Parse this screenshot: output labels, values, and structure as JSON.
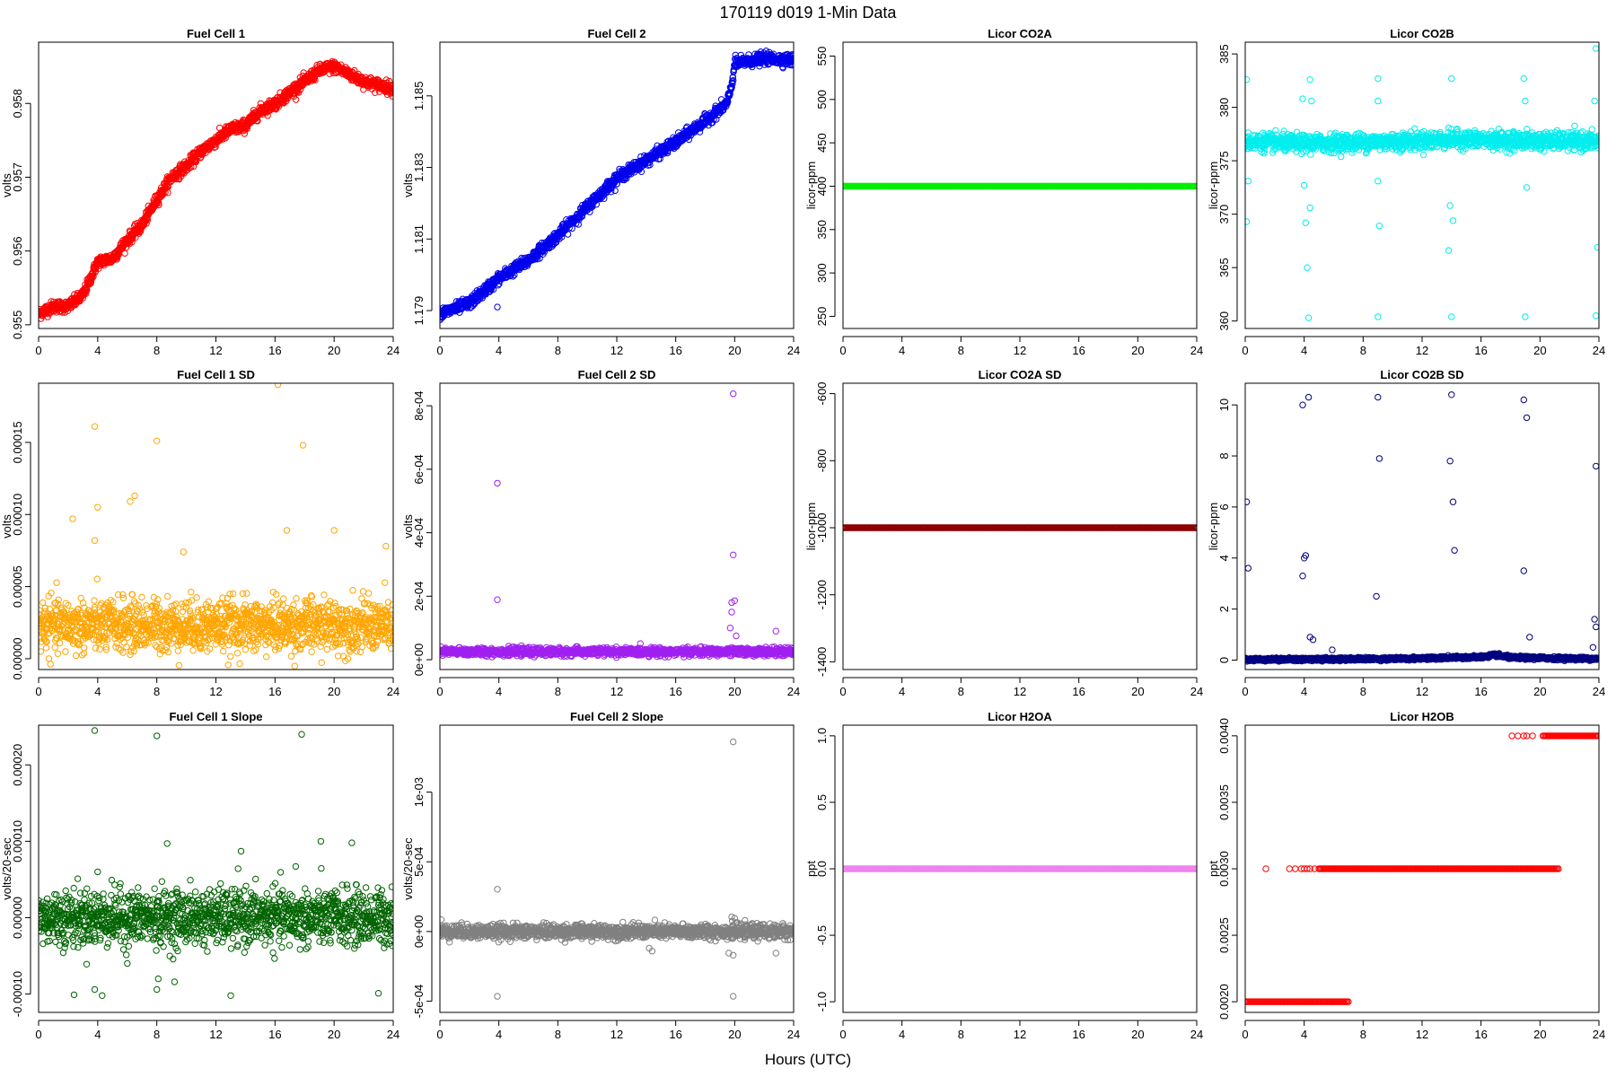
{
  "figure": {
    "title": "170119   d019   1-Min Data",
    "xlabel": "Hours (UTC)"
  },
  "chart_data": [
    {
      "type": "scatter",
      "title": "Fuel Cell 1",
      "ylabel": "volts",
      "color": "#ff0000",
      "xlim": [
        0,
        24
      ],
      "ylim": [
        0.95495,
        0.95883
      ],
      "xticks": [
        0,
        4,
        8,
        12,
        16,
        20,
        24
      ],
      "yticks": [
        0.955,
        0.956,
        0.957,
        0.958
      ],
      "ytick_labels": [
        "0.955",
        "0.956",
        "0.957",
        "0.958"
      ],
      "trend": [
        [
          0,
          0.95515
        ],
        [
          1,
          0.95525
        ],
        [
          2,
          0.95525
        ],
        [
          3,
          0.9554
        ],
        [
          4,
          0.95585
        ],
        [
          5,
          0.9559
        ],
        [
          6,
          0.95615
        ],
        [
          7,
          0.95635
        ],
        [
          8,
          0.9567
        ],
        [
          9,
          0.957
        ],
        [
          10,
          0.95715
        ],
        [
          11,
          0.95735
        ],
        [
          12,
          0.9575
        ],
        [
          13,
          0.95765
        ],
        [
          14,
          0.9577
        ],
        [
          15,
          0.9579
        ],
        [
          16,
          0.958
        ],
        [
          17,
          0.95815
        ],
        [
          18,
          0.9583
        ],
        [
          19,
          0.95845
        ],
        [
          20,
          0.9585
        ],
        [
          21,
          0.9584
        ],
        [
          22,
          0.9583
        ],
        [
          23,
          0.95825
        ],
        [
          24,
          0.9582
        ]
      ],
      "noise": 4e-05,
      "outliers": []
    },
    {
      "type": "scatter",
      "title": "Fuel Cell 2",
      "ylabel": "volts",
      "color": "#0000ee",
      "xlim": [
        0,
        24
      ],
      "ylim": [
        1.1785,
        1.1865
      ],
      "xticks": [
        0,
        4,
        8,
        12,
        16,
        20,
        24
      ],
      "yticks": [
        1.179,
        1.181,
        1.183,
        1.185
      ],
      "ytick_labels": [
        "1.179",
        "1.181",
        "1.183",
        "1.185"
      ],
      "trend": [
        [
          0,
          1.1789
        ],
        [
          2,
          1.1792
        ],
        [
          4,
          1.1799
        ],
        [
          6,
          1.1804
        ],
        [
          8,
          1.1811
        ],
        [
          10,
          1.1819
        ],
        [
          12,
          1.1827
        ],
        [
          14,
          1.1832
        ],
        [
          16,
          1.1837
        ],
        [
          18,
          1.1843
        ],
        [
          19.5,
          1.1848
        ],
        [
          19.8,
          1.1853
        ],
        [
          20,
          1.1859
        ],
        [
          22,
          1.18605
        ],
        [
          24,
          1.186
        ]
      ],
      "noise": 8e-05,
      "outliers": [
        [
          3.9,
          1.1791
        ],
        [
          19.9,
          1.1867
        ]
      ]
    },
    {
      "type": "scatter",
      "title": "Licor CO2A",
      "ylabel": "licor-ppm",
      "color": "#00ee00",
      "xlim": [
        0,
        24
      ],
      "ylim": [
        236,
        566
      ],
      "xticks": [
        0,
        4,
        8,
        12,
        16,
        20,
        24
      ],
      "yticks": [
        250,
        300,
        350,
        400,
        450,
        500,
        550
      ],
      "ytick_labels": [
        "250",
        "300",
        "350",
        "400",
        "450",
        "500",
        "550"
      ],
      "trend": [
        [
          0,
          400
        ],
        [
          24,
          400
        ]
      ],
      "noise": 0,
      "outliers": []
    },
    {
      "type": "scatter",
      "title": "Licor CO2B",
      "ylabel": "licor-ppm",
      "color": "#00eeee",
      "xlim": [
        0,
        24
      ],
      "ylim": [
        359.3,
        386.1
      ],
      "xticks": [
        0,
        4,
        8,
        12,
        16,
        20,
        24
      ],
      "yticks": [
        360,
        365,
        370,
        375,
        380,
        385
      ],
      "ytick_labels": [
        "360",
        "365",
        "370",
        "375",
        "380",
        "385"
      ],
      "trend": [
        [
          0,
          376.8
        ],
        [
          4,
          376.6
        ],
        [
          6,
          376.7
        ],
        [
          10,
          376.8
        ],
        [
          14,
          377.0
        ],
        [
          18,
          376.9
        ],
        [
          24,
          376.8
        ]
      ],
      "noise": 0.4,
      "outliers": [
        [
          0.1,
          382.6
        ],
        [
          0.1,
          369.3
        ],
        [
          0.2,
          373.1
        ],
        [
          3.9,
          380.8
        ],
        [
          4.0,
          372.7
        ],
        [
          4.1,
          369.2
        ],
        [
          4.2,
          365.0
        ],
        [
          4.3,
          360.3
        ],
        [
          4.4,
          382.6
        ],
        [
          4.5,
          380.6
        ],
        [
          4.4,
          370.6
        ],
        [
          9,
          382.7
        ],
        [
          9,
          380.6
        ],
        [
          9,
          373.1
        ],
        [
          9.1,
          368.9
        ],
        [
          9,
          360.4
        ],
        [
          13.8,
          366.6
        ],
        [
          13.9,
          370.8
        ],
        [
          14,
          382.7
        ],
        [
          14.1,
          369.4
        ],
        [
          14,
          360.4
        ],
        [
          18.9,
          382.7
        ],
        [
          19,
          380.6
        ],
        [
          19.1,
          372.5
        ],
        [
          19,
          360.4
        ],
        [
          23.8,
          385.5
        ],
        [
          23.9,
          366.9
        ],
        [
          23.7,
          380.6
        ],
        [
          23.8,
          360.5
        ]
      ]
    },
    {
      "type": "scatter",
      "title": "Fuel Cell 1 SD",
      "ylabel": "volts",
      "color": "#ffa500",
      "xlim": [
        0,
        24
      ],
      "ylim": [
        -7.5e-06,
        0.000191
      ],
      "xticks": [
        0,
        4,
        8,
        12,
        16,
        20,
        24
      ],
      "yticks": [
        0,
        5e-05,
        0.0001,
        0.00015
      ],
      "ytick_labels": [
        "0.00000",
        "0.00005",
        "0.00010",
        "0.00015"
      ],
      "trend": [
        [
          0,
          2.3e-05
        ],
        [
          24,
          2.3e-05
        ]
      ],
      "noise": 9e-06,
      "outliers": [
        [
          3.8,
          0.000161
        ],
        [
          8,
          0.000151
        ],
        [
          16.2,
          0.00019
        ],
        [
          17.9,
          0.000148
        ],
        [
          2.3,
          9.7e-05
        ],
        [
          4,
          0.000105
        ],
        [
          6.5,
          0.000113
        ],
        [
          6.2,
          0.000109
        ],
        [
          9.8,
          7.4e-05
        ],
        [
          16.8,
          8.9e-05
        ],
        [
          20,
          8.9e-05
        ],
        [
          23.5,
          7.8e-05
        ],
        [
          3.8,
          8.2e-05
        ]
      ]
    },
    {
      "type": "scatter",
      "title": "Fuel Cell 2 SD",
      "ylabel": "volts",
      "color": "#a020f0",
      "xlim": [
        0,
        24
      ],
      "ylim": [
        -3.1e-05,
        0.000871
      ],
      "xticks": [
        0,
        4,
        8,
        12,
        16,
        20,
        24
      ],
      "yticks": [
        0,
        0.0002,
        0.0004,
        0.0006,
        0.0008
      ],
      "ytick_labels": [
        "0e+00",
        "2e-04",
        "4e-04",
        "6e-04",
        "8e-04"
      ],
      "trend": [
        [
          0,
          2.5e-05
        ],
        [
          24,
          2.5e-05
        ]
      ],
      "noise": 6e-06,
      "outliers": [
        [
          3.9,
          0.000556
        ],
        [
          3.9,
          0.000189
        ],
        [
          19.9,
          0.000838
        ],
        [
          19.9,
          0.00033
        ],
        [
          19.8,
          0.00018
        ],
        [
          20,
          0.000186
        ],
        [
          19.8,
          0.00015
        ],
        [
          19.7,
          0.0001
        ],
        [
          20.1,
          7.5e-05
        ],
        [
          22.8,
          9e-05
        ]
      ]
    },
    {
      "type": "scatter",
      "title": "Licor CO2A SD",
      "ylabel": "licor-ppm",
      "color": "#8b0000",
      "xlim": [
        0,
        24
      ],
      "ylim": [
        -1423,
        -569
      ],
      "xticks": [
        0,
        4,
        8,
        12,
        16,
        20,
        24
      ],
      "yticks": [
        -1400,
        -1200,
        -1000,
        -800,
        -600
      ],
      "ytick_labels": [
        "-1400",
        "-1200",
        "-1000",
        "-800",
        "-600"
      ],
      "trend": [
        [
          0,
          -1000
        ],
        [
          24,
          -1000
        ]
      ],
      "noise": 0,
      "outliers": []
    },
    {
      "type": "scatter",
      "title": "Licor CO2B SD",
      "ylabel": "licor-ppm",
      "color": "#000080",
      "xlim": [
        0,
        24
      ],
      "ylim": [
        -0.37,
        10.85
      ],
      "xticks": [
        0,
        4,
        8,
        12,
        16,
        20,
        24
      ],
      "yticks": [
        0,
        2,
        4,
        6,
        8,
        10
      ],
      "ytick_labels": [
        "0",
        "2",
        "4",
        "6",
        "8",
        "10"
      ],
      "trend": [
        [
          0,
          0.02
        ],
        [
          10,
          0.05
        ],
        [
          16,
          0.12
        ],
        [
          17,
          0.2
        ],
        [
          18,
          0.1
        ],
        [
          24,
          0.05
        ]
      ],
      "noise": 0.03,
      "outliers": [
        [
          0.1,
          6.2
        ],
        [
          0.2,
          3.6
        ],
        [
          3.9,
          10
        ],
        [
          4.3,
          10.3
        ],
        [
          3.9,
          3.3
        ],
        [
          4,
          4
        ],
        [
          4.1,
          4.1
        ],
        [
          4.4,
          0.9
        ],
        [
          4.6,
          0.8
        ],
        [
          5.9,
          0.4
        ],
        [
          9,
          10.3
        ],
        [
          9.1,
          7.9
        ],
        [
          8.9,
          2.5
        ],
        [
          14,
          10.4
        ],
        [
          13.9,
          7.8
        ],
        [
          14.1,
          6.2
        ],
        [
          14.2,
          4.3
        ],
        [
          18.9,
          10.2
        ],
        [
          19.1,
          9.5
        ],
        [
          18.9,
          3.5
        ],
        [
          19.3,
          0.9
        ],
        [
          23.8,
          7.6
        ],
        [
          23.7,
          1.6
        ],
        [
          23.8,
          1.3
        ],
        [
          23.6,
          0.5
        ]
      ]
    },
    {
      "type": "scatter",
      "title": "Fuel Cell 1 Slope",
      "ylabel": "volts/20-sec",
      "color": "#006400",
      "xlim": [
        0,
        24
      ],
      "ylim": [
        -0.000124,
        0.000252
      ],
      "xticks": [
        0,
        4,
        8,
        12,
        16,
        20,
        24
      ],
      "yticks": [
        -0.0001,
        0,
        0.0001,
        0.0002
      ],
      "ytick_labels": [
        "-0.00010",
        "0.00000",
        "0.00010",
        "0.00020"
      ],
      "trend": [
        [
          0,
          0
        ],
        [
          24,
          0
        ]
      ],
      "noise": 1.8e-05,
      "outliers": [
        [
          3.8,
          0.000245
        ],
        [
          8,
          0.000238
        ],
        [
          17.8,
          0.00024
        ],
        [
          8.7,
          9.7e-05
        ],
        [
          13.7,
          8.7e-05
        ],
        [
          19.1,
          0.0001
        ],
        [
          21.2,
          9.8e-05
        ],
        [
          17.4,
          6.7e-05
        ],
        [
          2.4,
          -0.000101
        ],
        [
          3.8,
          -9.4e-05
        ],
        [
          4.3,
          -0.000102
        ],
        [
          8,
          -9.4e-05
        ],
        [
          8.1,
          -8e-05
        ],
        [
          9.2,
          -8.4e-05
        ],
        [
          13,
          -0.000102
        ],
        [
          23,
          -9.9e-05
        ],
        [
          6,
          -6e-05
        ],
        [
          4,
          6e-05
        ]
      ]
    },
    {
      "type": "scatter",
      "title": "Fuel Cell 2 Slope",
      "ylabel": "volts/20-sec",
      "color": "#808080",
      "xlim": [
        0,
        24
      ],
      "ylim": [
        -0.00058,
        0.00148
      ],
      "xticks": [
        0,
        4,
        8,
        12,
        16,
        20,
        24
      ],
      "yticks": [
        -0.0005,
        0,
        0.0005,
        0.001
      ],
      "ytick_labels": [
        "-5e-04",
        "0e+00",
        "5e-04",
        "1e-03"
      ],
      "trend": [
        [
          0,
          0
        ],
        [
          24,
          0
        ]
      ],
      "noise": 2.5e-05,
      "outliers": [
        [
          19.9,
          0.00136
        ],
        [
          3.9,
          0.000303
        ],
        [
          3.9,
          -0.000465
        ],
        [
          19.9,
          -0.000465
        ],
        [
          19.6,
          -0.000155
        ],
        [
          19.9,
          -0.00017
        ],
        [
          22.8,
          -0.000155
        ],
        [
          14.2,
          -0.00012
        ],
        [
          14.4,
          -0.00014
        ],
        [
          19.8,
          0.000105
        ],
        [
          20,
          9.5e-05
        ],
        [
          0.1,
          8.5e-05
        ]
      ]
    },
    {
      "type": "scatter",
      "title": "Licor H2OA",
      "ylabel": "ppt",
      "color": "#ee82ee",
      "xlim": [
        0,
        24
      ],
      "ylim": [
        -1.08,
        1.08
      ],
      "xticks": [
        0,
        4,
        8,
        12,
        16,
        20,
        24
      ],
      "yticks": [
        -1,
        -0.5,
        0,
        0.5,
        1
      ],
      "ytick_labels": [
        "-1.0",
        "-0.5",
        "0.0",
        "0.5",
        "1.0"
      ],
      "trend": [
        [
          0,
          0
        ],
        [
          24,
          0
        ]
      ],
      "noise": 0,
      "outliers": []
    },
    {
      "type": "scatter",
      "title": "Licor H2OB",
      "ylabel": "ppt",
      "color": "#ff0000",
      "xlim": [
        0,
        24
      ],
      "ylim": [
        0.00192,
        0.00408
      ],
      "xticks": [
        0,
        4,
        8,
        12,
        16,
        20,
        24
      ],
      "yticks": [
        0.002,
        0.0025,
        0.003,
        0.0035,
        0.004
      ],
      "ytick_labels": [
        "0.0020",
        "0.0025",
        "0.0030",
        "0.0035",
        "0.0040"
      ],
      "levels": [
        {
          "y": 0.002,
          "from": 0,
          "to": 7.0
        },
        {
          "y": 0.003,
          "from": 5.0,
          "to": 21.3
        },
        {
          "y": 0.004,
          "from": 20.2,
          "to": 24
        },
        {
          "y": 0.003,
          "points": [
            1.4,
            3.0,
            3.4,
            3.8,
            4.0,
            4.2,
            4.4,
            4.7
          ]
        },
        {
          "y": 0.004,
          "points": [
            18.1,
            18.5,
            18.9,
            19.1,
            19.5
          ]
        }
      ]
    }
  ]
}
